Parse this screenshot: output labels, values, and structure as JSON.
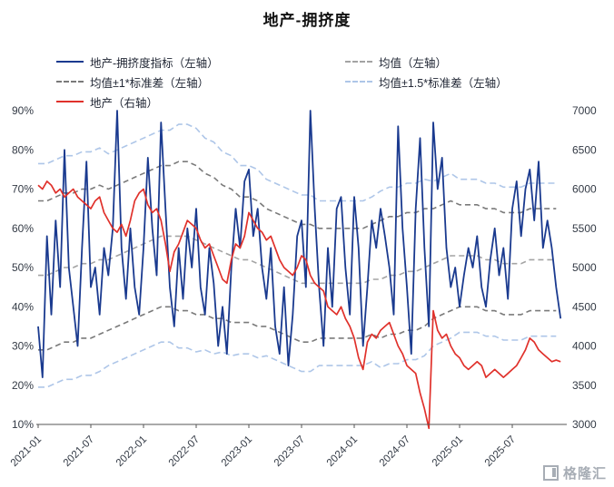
{
  "title": "地产-拥挤度",
  "watermark": {
    "text": "格隆汇"
  },
  "legend": {
    "items": [
      {
        "label": "地产-拥挤度指标（左轴）",
        "color": "#1a3a8f",
        "dash": "solid"
      },
      {
        "label": "均值（左轴）",
        "color": "#a3a3a3",
        "dash": "dashed"
      },
      {
        "label": "均值±1*标准差（左轴）",
        "color": "#7a7a7a",
        "dash": "dashed"
      },
      {
        "label": "均值±1.5*标准差（左轴）",
        "color": "#aec6e8",
        "dash": "dashed"
      },
      {
        "label": "地产（右轴）",
        "color": "#e0312b",
        "dash": "solid"
      }
    ]
  },
  "chart_data": {
    "type": "line",
    "title": "地产-拥挤度",
    "grid": "none",
    "legend_position": "top",
    "x_axis": {
      "start": "2021-01",
      "total_months": 60,
      "tick_months": [
        0,
        6,
        12,
        18,
        24,
        30,
        36,
        42,
        48,
        54
      ],
      "tick_labels": [
        "2021-01",
        "2021-07",
        "2022-01",
        "2022-07",
        "2023-01",
        "2023-07",
        "2024-01",
        "2024-07",
        "2025-01",
        "2025-07"
      ]
    },
    "left_axis": {
      "min": 10,
      "max": 90,
      "unit": "%",
      "ticks": [
        "90%",
        "80%",
        "70%",
        "60%",
        "50%",
        "40%",
        "30%",
        "20%",
        "10%"
      ]
    },
    "right_axis": {
      "min": 3000,
      "max": 7000,
      "ticks": [
        "7000",
        "6500",
        "6000",
        "5500",
        "5000",
        "4500",
        "4000",
        "3500",
        "3000"
      ]
    },
    "series": [
      {
        "id": "upper-1p5-sigma",
        "label": "均值+1.5*标准差（左轴）",
        "axis": "left",
        "color": "#aec6e8",
        "width": 1.6,
        "dash": "7,4",
        "x_step": 1,
        "values": [
          76.5,
          76.5,
          77.5,
          78.5,
          78.5,
          79.5,
          79.5,
          80.5,
          79,
          80,
          81,
          82,
          83,
          84,
          85,
          85,
          86.5,
          86.5,
          85.5,
          83,
          82,
          79.5,
          78.5,
          76,
          76,
          75,
          72.5,
          71.5,
          70.5,
          69.5,
          68.5,
          68.5,
          67,
          67,
          67,
          67,
          67,
          67,
          68,
          69.5,
          70.5,
          70.5,
          71.5,
          71.5,
          72.5,
          72,
          73,
          74,
          72.5,
          72.5,
          72.5,
          71.5,
          71.5,
          70.5,
          70.5,
          70.5,
          71.5,
          71.5,
          71.5,
          71.5
        ]
      },
      {
        "id": "lower-1p5-sigma",
        "label": "均值-1.5*标准差（左轴）",
        "axis": "left",
        "color": "#aec6e8",
        "width": 1.6,
        "dash": "7,4",
        "x_step": 1,
        "values": [
          19.5,
          19.5,
          20.5,
          21.5,
          21.5,
          22.5,
          22.5,
          23.5,
          25,
          26,
          27,
          28,
          29,
          30,
          31,
          31,
          29.5,
          29.5,
          28.5,
          29,
          28,
          28.5,
          27.5,
          28,
          28,
          27,
          27.5,
          26.5,
          25.5,
          24.5,
          23.5,
          23.5,
          25,
          25,
          25,
          25,
          25,
          25,
          26,
          24.5,
          25.5,
          25.5,
          26.5,
          26.5,
          27.5,
          30,
          31,
          32,
          33.5,
          33.5,
          33.5,
          32.5,
          32.5,
          31.5,
          31.5,
          31.5,
          32.5,
          32.5,
          32.5,
          32.5
        ]
      },
      {
        "id": "upper-1-sigma",
        "label": "均值+1*标准差（左轴）",
        "axis": "left",
        "color": "#7a7a7a",
        "width": 1.6,
        "dash": "6,4",
        "x_step": 1,
        "values": [
          67,
          67,
          68,
          69,
          69,
          70,
          70,
          71,
          70,
          71,
          72,
          73,
          74,
          75,
          76,
          76,
          77,
          77,
          76,
          74,
          73,
          71,
          70,
          68,
          68,
          67,
          65,
          64,
          63,
          62,
          61,
          61,
          60,
          60,
          60,
          60,
          60,
          60,
          61,
          62,
          63,
          63,
          64,
          64,
          65,
          65,
          66,
          67,
          66,
          66,
          66,
          65,
          65,
          64,
          64,
          64,
          65,
          65,
          65,
          65
        ]
      },
      {
        "id": "lower-1-sigma",
        "label": "均值-1*标准差（左轴）",
        "axis": "left",
        "color": "#7a7a7a",
        "width": 1.6,
        "dash": "6,4",
        "x_step": 1,
        "values": [
          29,
          29,
          30,
          31,
          31,
          32,
          32,
          33,
          34,
          35,
          36,
          37,
          38,
          39,
          40,
          40,
          39,
          39,
          38,
          38,
          37,
          37,
          36,
          36,
          36,
          35,
          35,
          34,
          33,
          32,
          31,
          31,
          32,
          32,
          32,
          32,
          32,
          32,
          33,
          32,
          33,
          33,
          34,
          34,
          35,
          37,
          38,
          39,
          40,
          40,
          40,
          39,
          39,
          38,
          38,
          38,
          39,
          39,
          39,
          39
        ]
      },
      {
        "id": "mean",
        "label": "均值（左轴）",
        "axis": "left",
        "color": "#a3a3a3",
        "width": 1.6,
        "dash": "6,4",
        "x_step": 1,
        "values": [
          48,
          48,
          49,
          50,
          50,
          51,
          51,
          52,
          52,
          53,
          54,
          55,
          56,
          57,
          58,
          58,
          58,
          58,
          57,
          56,
          55,
          54,
          53,
          52,
          52,
          51,
          50,
          49,
          48,
          47,
          46,
          46,
          46,
          46,
          46,
          46,
          46,
          46,
          47,
          47,
          48,
          48,
          49,
          49,
          50,
          51,
          52,
          53,
          53,
          53,
          53,
          52,
          52,
          51,
          51,
          51,
          52,
          52,
          52,
          52
        ]
      },
      {
        "id": "crowdedness-indicator",
        "label": "地产-拥挤度指标（左轴）",
        "axis": "left",
        "color": "#1a3a8f",
        "width": 1.8,
        "dash": "",
        "x_step": 0.5,
        "values": [
          35,
          22,
          58,
          38,
          62,
          45,
          80,
          50,
          40,
          30,
          55,
          77,
          45,
          50,
          38,
          55,
          48,
          60,
          90,
          55,
          42,
          60,
          45,
          38,
          55,
          78,
          60,
          48,
          87,
          65,
          45,
          35,
          55,
          42,
          60,
          50,
          65,
          45,
          38,
          55,
          46,
          30,
          40,
          28,
          50,
          65,
          55,
          72,
          75,
          58,
          65,
          50,
          42,
          55,
          35,
          28,
          45,
          25,
          38,
          58,
          62,
          45,
          90,
          65,
          45,
          30,
          55,
          40,
          65,
          68,
          50,
          38,
          68,
          55,
          30,
          45,
          62,
          55,
          65,
          58,
          50,
          38,
          86,
          60,
          45,
          28,
          65,
          83,
          55,
          35,
          87,
          70,
          78,
          55,
          45,
          50,
          40,
          48,
          55,
          50,
          58,
          45,
          40,
          52,
          60,
          48,
          55,
          42,
          65,
          72,
          58,
          70,
          75,
          62,
          77,
          55,
          62,
          55,
          45,
          37
        ]
      },
      {
        "id": "property-index",
        "label": "地产（右轴）",
        "axis": "right",
        "color": "#e0312b",
        "width": 1.7,
        "dash": "",
        "x_step": 0.5,
        "values": [
          6050,
          6000,
          6100,
          6050,
          5950,
          6000,
          5900,
          5950,
          6000,
          5900,
          5850,
          5800,
          5750,
          5850,
          5900,
          5700,
          5600,
          5500,
          5450,
          5550,
          5400,
          5600,
          5850,
          5950,
          6000,
          5800,
          5700,
          5750,
          5600,
          5300,
          4950,
          5200,
          5300,
          5450,
          5600,
          5550,
          5500,
          5350,
          5250,
          5300,
          5150,
          5000,
          4850,
          4800,
          5100,
          5300,
          5250,
          5400,
          5700,
          5600,
          5500,
          5450,
          5350,
          5400,
          5250,
          5100,
          5000,
          4950,
          4900,
          5000,
          5150,
          5100,
          4900,
          4800,
          4750,
          4700,
          4500,
          4450,
          4400,
          4500,
          4350,
          4250,
          4100,
          3850,
          3700,
          4050,
          4150,
          4100,
          4200,
          4250,
          4300,
          4150,
          4000,
          3900,
          3750,
          3700,
          3650,
          3400,
          3200,
          2950,
          4450,
          4200,
          4100,
          4150,
          4000,
          3900,
          3850,
          3750,
          3700,
          3750,
          3800,
          3750,
          3600,
          3650,
          3700,
          3650,
          3600,
          3650,
          3700,
          3750,
          3850,
          3950,
          4100,
          4050,
          3950,
          3900,
          3850,
          3800,
          3820,
          3800
        ]
      }
    ]
  }
}
